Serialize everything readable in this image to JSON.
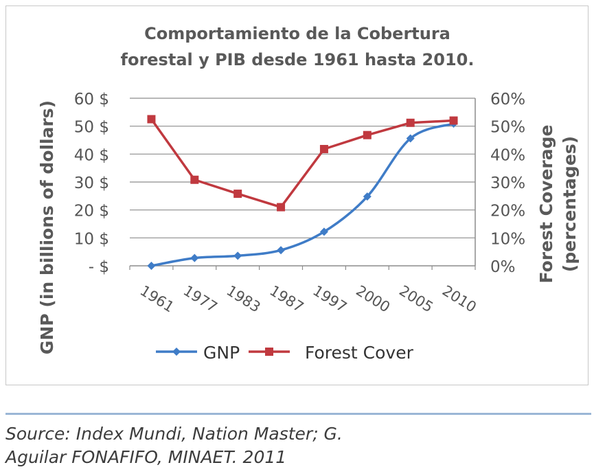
{
  "chart_data": {
    "type": "line",
    "title_lines": [
      "Comportamiento de la Cobertura",
      "forestal y PIB desde 1961 hasta 2010."
    ],
    "categories": [
      "1961",
      "1977",
      "1983",
      "1987",
      "1997",
      "2000",
      "2005",
      "2010"
    ],
    "ylabel_left": "GNP (in billions of dollars)",
    "ylabel_right_lines": [
      "Forest Coverage",
      "(percentages)"
    ],
    "y_left_ticks": [
      "- $",
      "10 $",
      "20 $",
      "30 $",
      "40 $",
      "50 $",
      "60 $"
    ],
    "y_right_ticks": [
      "0%",
      "10%",
      "20%",
      "30%",
      "40%",
      "50%",
      "60%"
    ],
    "ylim_left": [
      0,
      60
    ],
    "ylim_right": [
      0,
      60
    ],
    "grid": true,
    "legend_position": "bottom",
    "series": [
      {
        "name": "GNP",
        "axis": "left",
        "color": "#3f7cc7",
        "marker": "diamond",
        "smooth": true,
        "values": [
          0,
          2.8,
          3.6,
          5.6,
          12.2,
          24.8,
          45.6,
          50.9
        ]
      },
      {
        "name": "Forest Cover",
        "axis": "right",
        "color": "#c0393f",
        "marker": "square",
        "smooth": false,
        "values": [
          52.5,
          30.8,
          25.8,
          21.0,
          41.8,
          46.8,
          51.2,
          52.0
        ]
      }
    ]
  },
  "source": {
    "line1": "Source: Index Mundi, Nation Master; G.",
    "line2": "Aguilar FONAFIFO, MINAET. 2011"
  }
}
